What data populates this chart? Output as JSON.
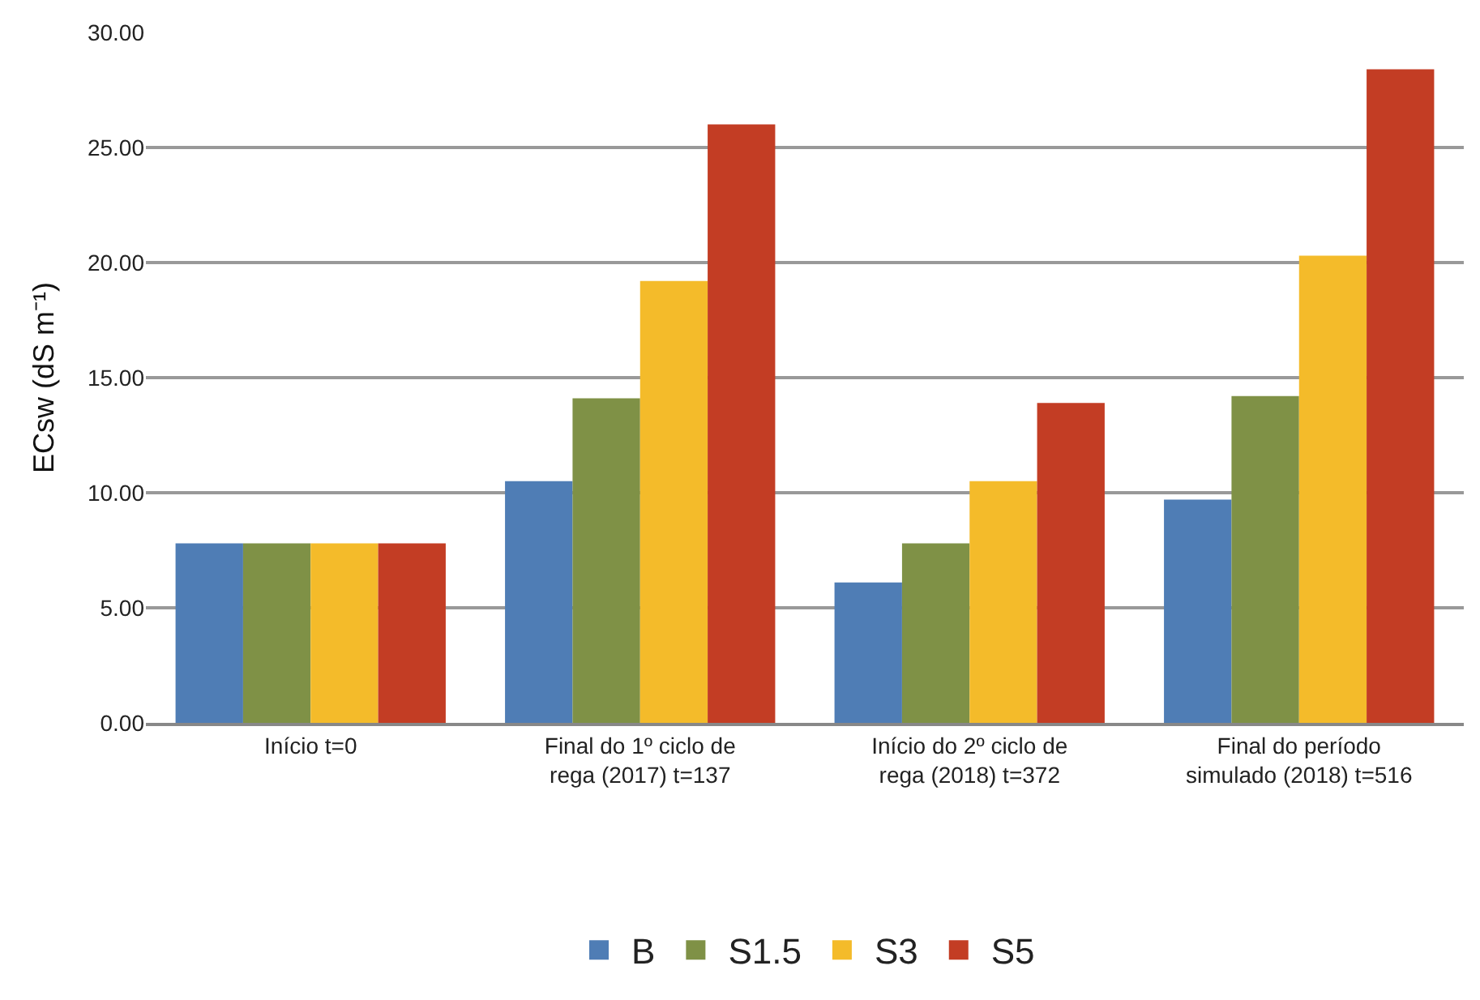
{
  "chart_data": {
    "type": "bar",
    "ylabel": "ECsw (dS m⁻¹)",
    "categories": [
      "Início t=0",
      "Final do 1º ciclo de\nrega (2017) t=137",
      "Início do 2º ciclo de\nrega (2018) t=372",
      "Final do período\nsimulado (2018) t=516"
    ],
    "series": [
      {
        "name": "B",
        "color": "#4f7db5",
        "values": [
          7.8,
          10.5,
          6.1,
          9.7
        ]
      },
      {
        "name": "S1.5",
        "color": "#7f9146",
        "values": [
          7.8,
          14.1,
          7.8,
          14.2
        ]
      },
      {
        "name": "S3",
        "color": "#f4bb2a",
        "values": [
          7.8,
          19.2,
          10.5,
          20.3
        ]
      },
      {
        "name": "S5",
        "color": "#c33d24",
        "values": [
          7.8,
          26.0,
          13.9,
          28.4
        ]
      }
    ],
    "ylim": [
      0,
      30
    ],
    "yticks": [
      {
        "value": 0,
        "label": "0.00"
      },
      {
        "value": 5,
        "label": "5.00"
      },
      {
        "value": 10,
        "label": "10.00"
      },
      {
        "value": 15,
        "label": "15.00"
      },
      {
        "value": 20,
        "label": "20.00"
      },
      {
        "value": 25,
        "label": "25.00"
      },
      {
        "value": 30,
        "label": "30.00"
      }
    ],
    "grid": "y",
    "legend": "bottom"
  }
}
